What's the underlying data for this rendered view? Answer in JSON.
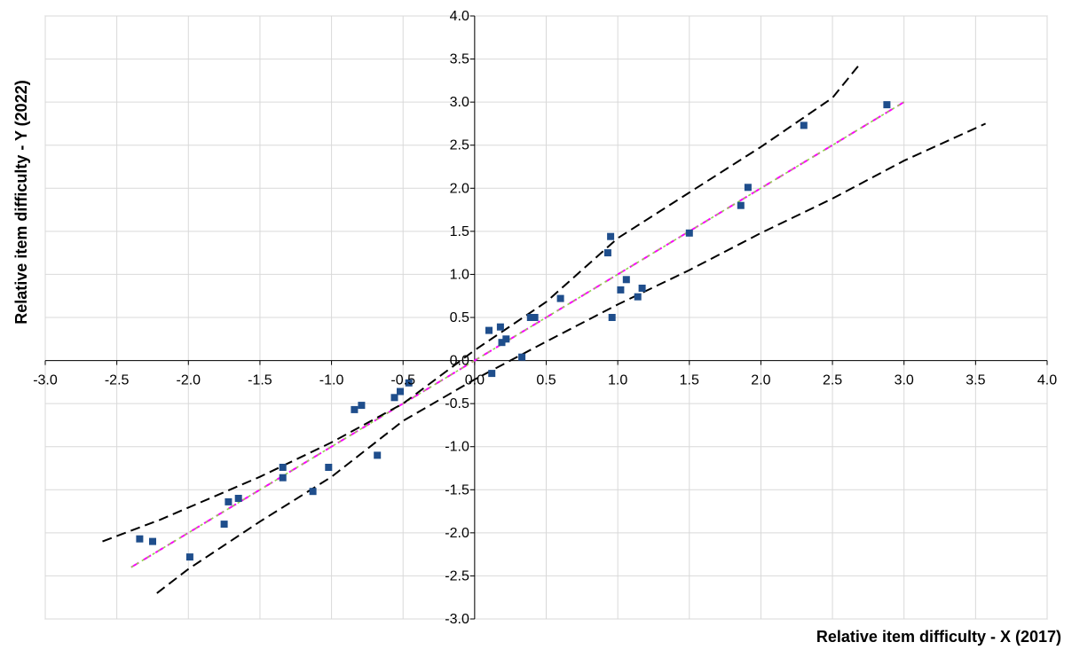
{
  "chart_data": {
    "type": "scatter",
    "xlabel": "Relative item difficulty - X (2017)",
    "ylabel": "Relative item difficulty - Y (2022)",
    "xlim": [
      -3.0,
      4.0
    ],
    "ylim": [
      -3.0,
      4.0
    ],
    "x_ticks": [
      "-3.0",
      "-2.5",
      "-2.0",
      "-1.5",
      "-1.0",
      "-0.5",
      "0.0",
      "0.5",
      "1.0",
      "1.5",
      "2.0",
      "2.5",
      "3.0",
      "3.5",
      "4.0"
    ],
    "y_ticks": [
      "-3.0",
      "-2.5",
      "-2.0",
      "-1.5",
      "-1.0",
      "-0.5",
      "0.0",
      "0.5",
      "1.0",
      "1.5",
      "2.0",
      "2.5",
      "3.0",
      "3.5",
      "4.0"
    ],
    "grid": true,
    "axes_cross_at_origin": true,
    "series": [
      {
        "kind": "points",
        "marker": "square",
        "color": "#1F4E8C",
        "points": [
          [
            -2.34,
            -2.07
          ],
          [
            -2.25,
            -2.1
          ],
          [
            -1.99,
            -2.28
          ],
          [
            -1.75,
            -1.9
          ],
          [
            -1.72,
            -1.64
          ],
          [
            -1.65,
            -1.6
          ],
          [
            -1.34,
            -1.24
          ],
          [
            -1.34,
            -1.36
          ],
          [
            -1.13,
            -1.52
          ],
          [
            -1.02,
            -1.24
          ],
          [
            -0.84,
            -0.57
          ],
          [
            -0.79,
            -0.52
          ],
          [
            -0.68,
            -1.1
          ],
          [
            -0.56,
            -0.43
          ],
          [
            -0.52,
            -0.36
          ],
          [
            -0.46,
            -0.26
          ],
          [
            0.1,
            0.35
          ],
          [
            0.12,
            -0.15
          ],
          [
            0.19,
            0.21
          ],
          [
            0.18,
            0.39
          ],
          [
            0.22,
            0.25
          ],
          [
            0.33,
            0.04
          ],
          [
            0.39,
            0.5
          ],
          [
            0.42,
            0.5
          ],
          [
            0.6,
            0.72
          ],
          [
            0.93,
            1.25
          ],
          [
            0.95,
            1.44
          ],
          [
            0.96,
            0.5
          ],
          [
            1.02,
            0.82
          ],
          [
            1.06,
            0.94
          ],
          [
            1.14,
            0.74
          ],
          [
            1.17,
            0.84
          ],
          [
            1.5,
            1.48
          ],
          [
            1.86,
            1.8
          ],
          [
            1.91,
            2.01
          ],
          [
            2.3,
            2.73
          ],
          [
            2.88,
            2.97
          ]
        ]
      },
      {
        "kind": "line",
        "style": "dashed",
        "color": "#FF00FF",
        "points": [
          [
            -2.4,
            -2.4
          ],
          [
            3.0,
            3.0
          ]
        ]
      },
      {
        "kind": "line",
        "style": "dotted",
        "color": "#92D050",
        "points": [
          [
            -2.4,
            -2.4
          ],
          [
            3.0,
            3.0
          ]
        ]
      },
      {
        "kind": "line",
        "style": "dashed",
        "color": "#000000",
        "points": [
          [
            -2.6,
            -2.1
          ],
          [
            -2.2,
            -1.85
          ],
          [
            -1.5,
            -1.35
          ],
          [
            -1.0,
            -0.95
          ],
          [
            -0.5,
            -0.5
          ],
          [
            0.0,
            0.12
          ],
          [
            0.5,
            0.68
          ],
          [
            1.0,
            1.42
          ],
          [
            1.5,
            1.95
          ],
          [
            2.0,
            2.48
          ],
          [
            2.5,
            3.05
          ],
          [
            2.7,
            3.46
          ]
        ]
      },
      {
        "kind": "line",
        "style": "dashed",
        "color": "#000000",
        "points": [
          [
            -2.22,
            -2.7
          ],
          [
            -2.0,
            -2.42
          ],
          [
            -1.5,
            -1.87
          ],
          [
            -1.0,
            -1.35
          ],
          [
            -0.5,
            -0.7
          ],
          [
            0.0,
            -0.22
          ],
          [
            0.5,
            0.22
          ],
          [
            1.0,
            0.65
          ],
          [
            1.5,
            1.05
          ],
          [
            2.0,
            1.48
          ],
          [
            2.5,
            1.88
          ],
          [
            3.0,
            2.32
          ],
          [
            3.57,
            2.75
          ]
        ]
      }
    ]
  }
}
